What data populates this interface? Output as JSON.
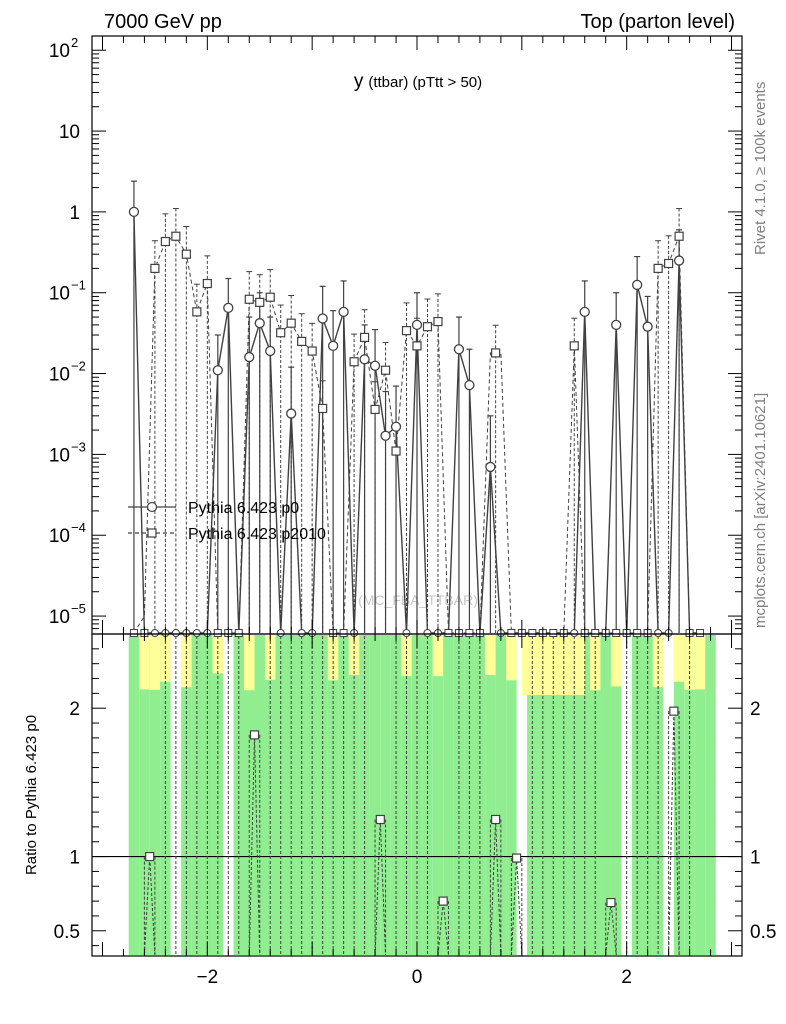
{
  "header": {
    "left": "7000 GeV pp",
    "right": "Top (parton level)"
  },
  "side_text": {
    "rivet": "Rivet 4.1.0, ≥ 100k events",
    "mcplots": "mcplots.cern.ch [arXiv:2401.10621]"
  },
  "watermark": "(MC_FBA_TTBAR)",
  "colors": {
    "series1": "#404040",
    "series2": "#404040",
    "band_green": "#90ee90",
    "band_yellow": "#ffff99"
  },
  "chart_data": {
    "type": "line",
    "title": "y (ttbar) (pTtt > 50)",
    "title_parts": {
      "main": "y",
      "sub": "(ttbar)  (pTtt > 50)"
    },
    "xlim": [
      -3.1,
      3.1
    ],
    "ylim_top": [
      6e-06,
      150
    ],
    "yscale_top": "log",
    "ylim_ratio": [
      0.33,
      2.5
    ],
    "ylabel_ratio": "Ratio to Pythia 6.423 p0",
    "legend_placement": "left-middle",
    "x_ticks": [
      {
        "value": -2,
        "label": "−2"
      },
      {
        "value": 0,
        "label": "0"
      },
      {
        "value": 2,
        "label": "2"
      }
    ],
    "y_ticks_top": [
      {
        "value": 100,
        "label": "10",
        "sup": "2"
      },
      {
        "value": 10,
        "label": "10",
        "sup": ""
      },
      {
        "value": 1,
        "label": "1",
        "sup": ""
      },
      {
        "value": 0.1,
        "label": "10",
        "sup": "−1"
      },
      {
        "value": 0.01,
        "label": "10",
        "sup": "−2"
      },
      {
        "value": 0.001,
        "label": "10",
        "sup": "−3"
      },
      {
        "value": 0.0001,
        "label": "10",
        "sup": "−4"
      },
      {
        "value": 1e-05,
        "label": "10",
        "sup": "−5"
      }
    ],
    "y_ticks_ratio": [
      {
        "value": 2,
        "label": "2"
      },
      {
        "value": 1,
        "label": "1"
      },
      {
        "value": 0.5,
        "label": "0.5"
      }
    ],
    "series": [
      {
        "name": "Pythia 6.423 p0",
        "marker": "circle",
        "dash": "solid",
        "points": [
          [
            -2.7,
            1.0
          ],
          [
            -1.9,
            0.011
          ],
          [
            -1.8,
            0.065
          ],
          [
            -1.6,
            0.016
          ],
          [
            -1.5,
            0.042
          ],
          [
            -1.4,
            0.019
          ],
          [
            -1.2,
            0.0032
          ],
          [
            -0.9,
            0.048
          ],
          [
            -0.8,
            0.022
          ],
          [
            -0.7,
            0.058
          ],
          [
            -0.5,
            0.015
          ],
          [
            -0.4,
            0.0125
          ],
          [
            -0.3,
            0.0017
          ],
          [
            -0.2,
            0.0022
          ],
          [
            0.0,
            0.04
          ],
          [
            0.4,
            0.02
          ],
          [
            0.5,
            0.0072
          ],
          [
            0.7,
            0.0007
          ],
          [
            1.6,
            0.058
          ],
          [
            1.9,
            0.04
          ],
          [
            2.1,
            0.125
          ],
          [
            2.2,
            0.038
          ],
          [
            2.5,
            0.25
          ]
        ],
        "errors_up": [
          [
            -2.7,
            2.4
          ],
          [
            -1.9,
            0.03
          ],
          [
            -1.8,
            0.15
          ],
          [
            -1.6,
            0.05
          ],
          [
            -1.5,
            0.1
          ],
          [
            -1.4,
            0.05
          ],
          [
            -1.2,
            0.012
          ],
          [
            -0.9,
            0.12
          ],
          [
            -0.8,
            0.06
          ],
          [
            -0.7,
            0.14
          ],
          [
            -0.5,
            0.04
          ],
          [
            -0.4,
            0.035
          ],
          [
            -0.3,
            0.006
          ],
          [
            -0.2,
            0.007
          ],
          [
            0.0,
            0.1
          ],
          [
            0.4,
            0.05
          ],
          [
            0.5,
            0.02
          ],
          [
            0.7,
            0.003
          ],
          [
            1.6,
            0.14
          ],
          [
            1.9,
            0.1
          ],
          [
            2.1,
            0.28
          ],
          [
            2.2,
            0.09
          ],
          [
            2.5,
            0.6
          ]
        ]
      },
      {
        "name": "Pythia 6.423 p2010",
        "marker": "square",
        "dash": "dashed",
        "points": [
          [
            -2.6,
            1e-05
          ],
          [
            -2.5,
            0.2
          ],
          [
            -2.4,
            0.43
          ],
          [
            -2.3,
            0.5
          ],
          [
            -2.2,
            0.3
          ],
          [
            -2.1,
            0.058
          ],
          [
            -2.0,
            0.13
          ],
          [
            -1.6,
            0.083
          ],
          [
            -1.5,
            0.076
          ],
          [
            -1.4,
            0.088
          ],
          [
            -1.3,
            0.032
          ],
          [
            -1.2,
            0.042
          ],
          [
            -1.1,
            0.025
          ],
          [
            -1.0,
            0.019
          ],
          [
            -0.9,
            0.0037
          ],
          [
            -0.6,
            0.014
          ],
          [
            -0.5,
            0.028
          ],
          [
            -0.4,
            0.0036
          ],
          [
            -0.3,
            0.011
          ],
          [
            -0.2,
            0.0011
          ],
          [
            -0.1,
            0.034
          ],
          [
            0.0,
            0.022
          ],
          [
            0.1,
            0.038
          ],
          [
            0.2,
            0.044
          ],
          [
            0.75,
            0.018
          ],
          [
            1.5,
            0.022
          ],
          [
            2.3,
            0.2
          ],
          [
            2.4,
            0.23
          ],
          [
            2.5,
            0.5
          ]
        ]
      }
    ],
    "ratio_points": [
      [
        -2.55,
        1.0
      ],
      [
        -1.55,
        1.82
      ],
      [
        -0.35,
        1.25
      ],
      [
        0.25,
        0.7
      ],
      [
        0.75,
        1.25
      ],
      [
        0.95,
        0.99
      ],
      [
        1.85,
        0.69
      ],
      [
        2.45,
        1.98
      ]
    ]
  }
}
